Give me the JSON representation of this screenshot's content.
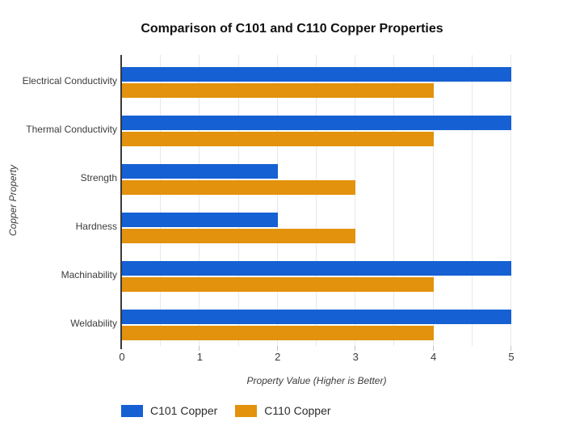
{
  "chart_data": {
    "type": "bar",
    "orientation": "horizontal",
    "title": "Comparison of C101 and C110 Copper Properties",
    "categories": [
      "Electrical Conductivity",
      "Thermal Conductivity",
      "Strength",
      "Hardness",
      "Machinability",
      "Weldability"
    ],
    "series": [
      {
        "name": "C101 Copper",
        "color": "#1560D2",
        "values": [
          5,
          5,
          2,
          2,
          5,
          5
        ]
      },
      {
        "name": "C110 Copper",
        "color": "#E2920C",
        "values": [
          4,
          4,
          3,
          3,
          4,
          4
        ]
      }
    ],
    "xlabel": "Property Value (Higher is Better)",
    "ylabel": "Copper Property",
    "xlim": [
      0,
      5
    ],
    "xticks": [
      "0",
      "1",
      "2",
      "3",
      "4",
      "5"
    ],
    "minor_gridline_step": 0.5,
    "grid": true,
    "legend_position": "bottom"
  },
  "style": {
    "background": "#FFFFFF",
    "grid_color": "#E8E8E8",
    "axis_color": "#3A3A3A",
    "tick_color": "#C2C2C2",
    "label_color": "#3C3C3C",
    "title_color": "#111111"
  }
}
